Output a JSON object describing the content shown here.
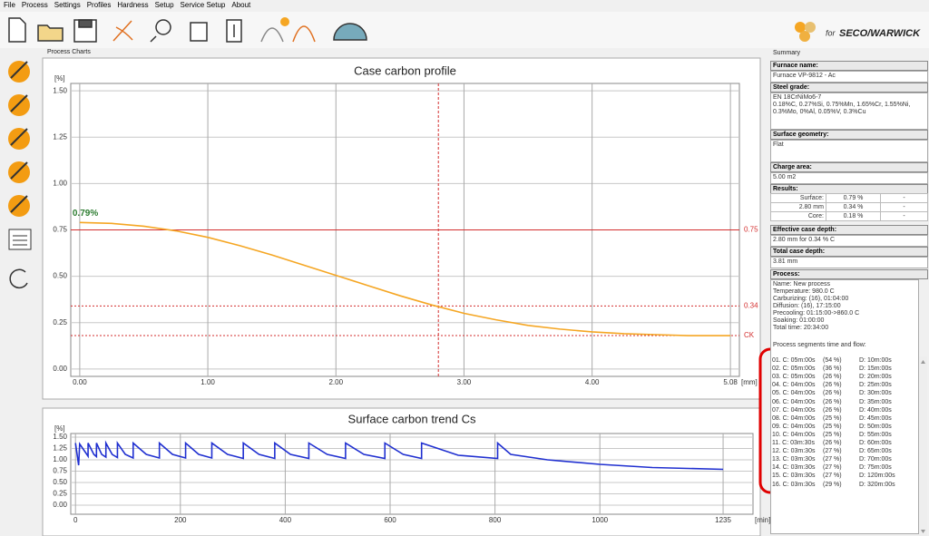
{
  "menu": [
    "File",
    "Process",
    "Settings",
    "Profiles",
    "Hardness",
    "Setup",
    "Service Setup",
    "About"
  ],
  "logo": {
    "prefix": "for",
    "brand": "SECO/WARWICK"
  },
  "panel_title": "Process Charts",
  "chart_data": [
    {
      "type": "line",
      "title": "Case carbon profile",
      "x_unit": "[mm]",
      "y_unit": "[%]",
      "xlim": [
        -0.07,
        5.15
      ],
      "ylim": [
        -0.04,
        1.54
      ],
      "grid": true,
      "xticks": [
        {
          "value": 0,
          "label": "0.00"
        },
        {
          "value": 1,
          "label": "1.00"
        },
        {
          "value": 2,
          "label": "2.00"
        },
        {
          "value": 3,
          "label": "3.00"
        },
        {
          "value": 4,
          "label": "4.00"
        },
        5.08
      ],
      "yticks": [
        {
          "value": 0,
          "label": "0.00"
        },
        0.25,
        {
          "value": 0.5,
          "label": "0.50"
        },
        0.75,
        {
          "value": 1,
          "label": "1.00"
        },
        1.25,
        {
          "value": 1.5,
          "label": "1.50"
        }
      ],
      "x": [
        0,
        0.25,
        0.5,
        0.75,
        1.0,
        1.25,
        1.5,
        1.75,
        2.0,
        2.25,
        2.5,
        2.75,
        3.0,
        3.25,
        3.5,
        3.75,
        4.0,
        4.25,
        4.5,
        4.75,
        5.08
      ],
      "series": [
        {
          "color": "#f5a623",
          "values": [
            0.79,
            0.785,
            0.77,
            0.745,
            0.71,
            0.665,
            0.615,
            0.56,
            0.505,
            0.45,
            0.395,
            0.345,
            0.3,
            0.265,
            0.235,
            0.215,
            0.2,
            0.19,
            0.185,
            0.18,
            0.18
          ]
        }
      ],
      "annotation": "0.79%",
      "annotation_color": "#2e7d32",
      "hlines": [
        {
          "value": 0.75,
          "label": "0.75",
          "dashed": false
        },
        {
          "value": 0.34,
          "label": "0.34",
          "dashed": true
        },
        {
          "value": 0.18,
          "label": "CK",
          "dashed": true
        }
      ],
      "vline": 2.8,
      "ref_color": "#d32f2f"
    },
    {
      "type": "line",
      "title": "Surface carbon trend Cs",
      "x_unit": "[min]",
      "y_unit": "[%]",
      "xlim": [
        -9,
        1292
      ],
      "ylim": [
        -0.2,
        1.58
      ],
      "grid": true,
      "xticks": [
        0,
        200,
        400,
        600,
        800,
        1000,
        1235
      ],
      "yticks": [
        {
          "value": 0,
          "label": "0.00"
        },
        0.25,
        {
          "value": 0.5,
          "label": "0.50"
        },
        0.75,
        {
          "value": 1,
          "label": "1.00"
        },
        1.25,
        {
          "value": 1.5,
          "label": "1.50"
        }
      ],
      "x": [
        0,
        6,
        8,
        24,
        24,
        35,
        40,
        40,
        50,
        58,
        58,
        70,
        80,
        80,
        95,
        110,
        110,
        135,
        160,
        160,
        185,
        210,
        210,
        235,
        260,
        260,
        290,
        320,
        320,
        350,
        380,
        380,
        410,
        445,
        445,
        480,
        515,
        515,
        550,
        590,
        590,
        625,
        660,
        660,
        730,
        805,
        805,
        830,
        900,
        1000,
        1100,
        1235
      ],
      "series": [
        {
          "color": "#1f2fd0",
          "values": [
            1.37,
            0.88,
            1.35,
            1.08,
            1.37,
            1.12,
            1.07,
            1.37,
            1.12,
            1.06,
            1.37,
            1.12,
            1.05,
            1.37,
            1.12,
            1.04,
            1.37,
            1.12,
            1.04,
            1.37,
            1.12,
            1.04,
            1.37,
            1.12,
            1.04,
            1.37,
            1.12,
            1.03,
            1.37,
            1.12,
            1.03,
            1.37,
            1.12,
            1.03,
            1.37,
            1.12,
            1.03,
            1.37,
            1.12,
            1.03,
            1.37,
            1.12,
            1.03,
            1.37,
            1.1,
            1.03,
            1.37,
            1.12,
            1.0,
            0.9,
            0.83,
            0.79
          ]
        }
      ]
    }
  ],
  "summary": {
    "title": "Summary",
    "furnace_name": {
      "label": "Furnace name:",
      "value": "Furnace VP-9812 - Ac"
    },
    "steel_grade": {
      "label": "Steel grade:",
      "lines": [
        "EN 18CrNiMo6-7",
        "0.18%C, 0.27%Si, 0.75%Mn, 1.65%Cr, 1.55%Ni,",
        "0.3%Mo, 0%Al, 0.05%V, 0.3%Cu"
      ]
    },
    "surface_geometry": {
      "label": "Surface geometry:",
      "value": "Flat"
    },
    "charge_area": {
      "label": "Charge area:",
      "value": "5.00 m2"
    },
    "results": {
      "label": "Results:",
      "rows": [
        [
          "Surface:",
          "0.79 %",
          "-"
        ],
        [
          "2.80 mm",
          "0.34 %",
          "-"
        ],
        [
          "Core:",
          "0.18 %",
          "-"
        ]
      ]
    },
    "effective_case_depth": {
      "label": "Effective case depth:",
      "value": "2.80 mm for 0.34 % C"
    },
    "total_case_depth": {
      "label": "Total case depth:",
      "value": "3.81 mm"
    },
    "process": {
      "label": "Process:",
      "lines": [
        "Name: New process",
        "Temperature: 980.0 C",
        "Carburizing: (16), 01:04:00",
        "Diffusion: (16), 17:15:00",
        "Precooling: 01:15:00->860.0 C",
        "Soaking: 01:00:00",
        "Total time: 20:34:00"
      ],
      "segments_label": "Process segments time and flow:",
      "segments": [
        [
          "01. C: 05m:00s",
          "(54 %)",
          "D: 10m:00s"
        ],
        [
          "02. C: 05m:00s",
          "(36 %)",
          "D: 15m:00s"
        ],
        [
          "03. C: 05m:00s",
          "(26 %)",
          "D: 20m:00s"
        ],
        [
          "04. C: 04m:00s",
          "(26 %)",
          "D: 25m:00s"
        ],
        [
          "05. C: 04m:00s",
          "(26 %)",
          "D: 30m:00s"
        ],
        [
          "06. C: 04m:00s",
          "(26 %)",
          "D: 35m:00s"
        ],
        [
          "07. C: 04m:00s",
          "(26 %)",
          "D: 40m:00s"
        ],
        [
          "08. C: 04m:00s",
          "(25 %)",
          "D: 45m:00s"
        ],
        [
          "09. C: 04m:00s",
          "(25 %)",
          "D: 50m:00s"
        ],
        [
          "10. C: 04m:00s",
          "(25 %)",
          "D: 55m:00s"
        ],
        [
          "11. C: 03m:30s",
          "(26 %)",
          "D: 60m:00s"
        ],
        [
          "12. C: 03m:30s",
          "(27 %)",
          "D: 65m:00s"
        ],
        [
          "13. C: 03m:30s",
          "(27 %)",
          "D: 70m:00s"
        ],
        [
          "14. C: 03m:30s",
          "(27 %)",
          "D: 75m:00s"
        ],
        [
          "15. C: 03m:30s",
          "(27 %)",
          "D: 120m:00s"
        ],
        [
          "16. C: 03m:30s",
          "(29 %)",
          "D: 320m:00s"
        ]
      ]
    }
  }
}
